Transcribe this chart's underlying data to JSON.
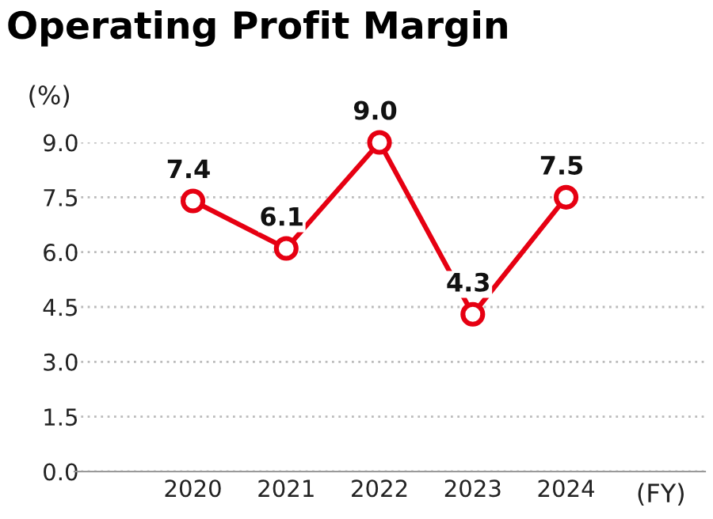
{
  "chart_data": {
    "type": "line",
    "title": "Operating Profit Margin",
    "ylabel": "(%)",
    "xlabel": "(FY)",
    "categories": [
      "2020",
      "2021",
      "2022",
      "2023",
      "2024"
    ],
    "series": [
      {
        "color": "#e60012",
        "values": [
          7.4,
          6.1,
          9.0,
          4.3,
          7.5
        ],
        "value_labels": [
          "7.4",
          "6.1",
          "9.0",
          "4.3",
          "7.5"
        ]
      }
    ],
    "ylim": [
      0,
      9
    ],
    "yticks": [
      {
        "value": 0,
        "label": "0.0"
      },
      {
        "value": 1.5,
        "label": "1.5"
      },
      {
        "value": 3,
        "label": "3.0"
      },
      {
        "value": 4.5,
        "label": "4.5"
      },
      {
        "value": 6,
        "label": "6.0"
      },
      {
        "value": 7.5,
        "label": "7.5"
      },
      {
        "value": 9,
        "label": "9.0"
      }
    ],
    "grid": "y",
    "marker": "circle",
    "line_style": "solid",
    "legend": false
  }
}
